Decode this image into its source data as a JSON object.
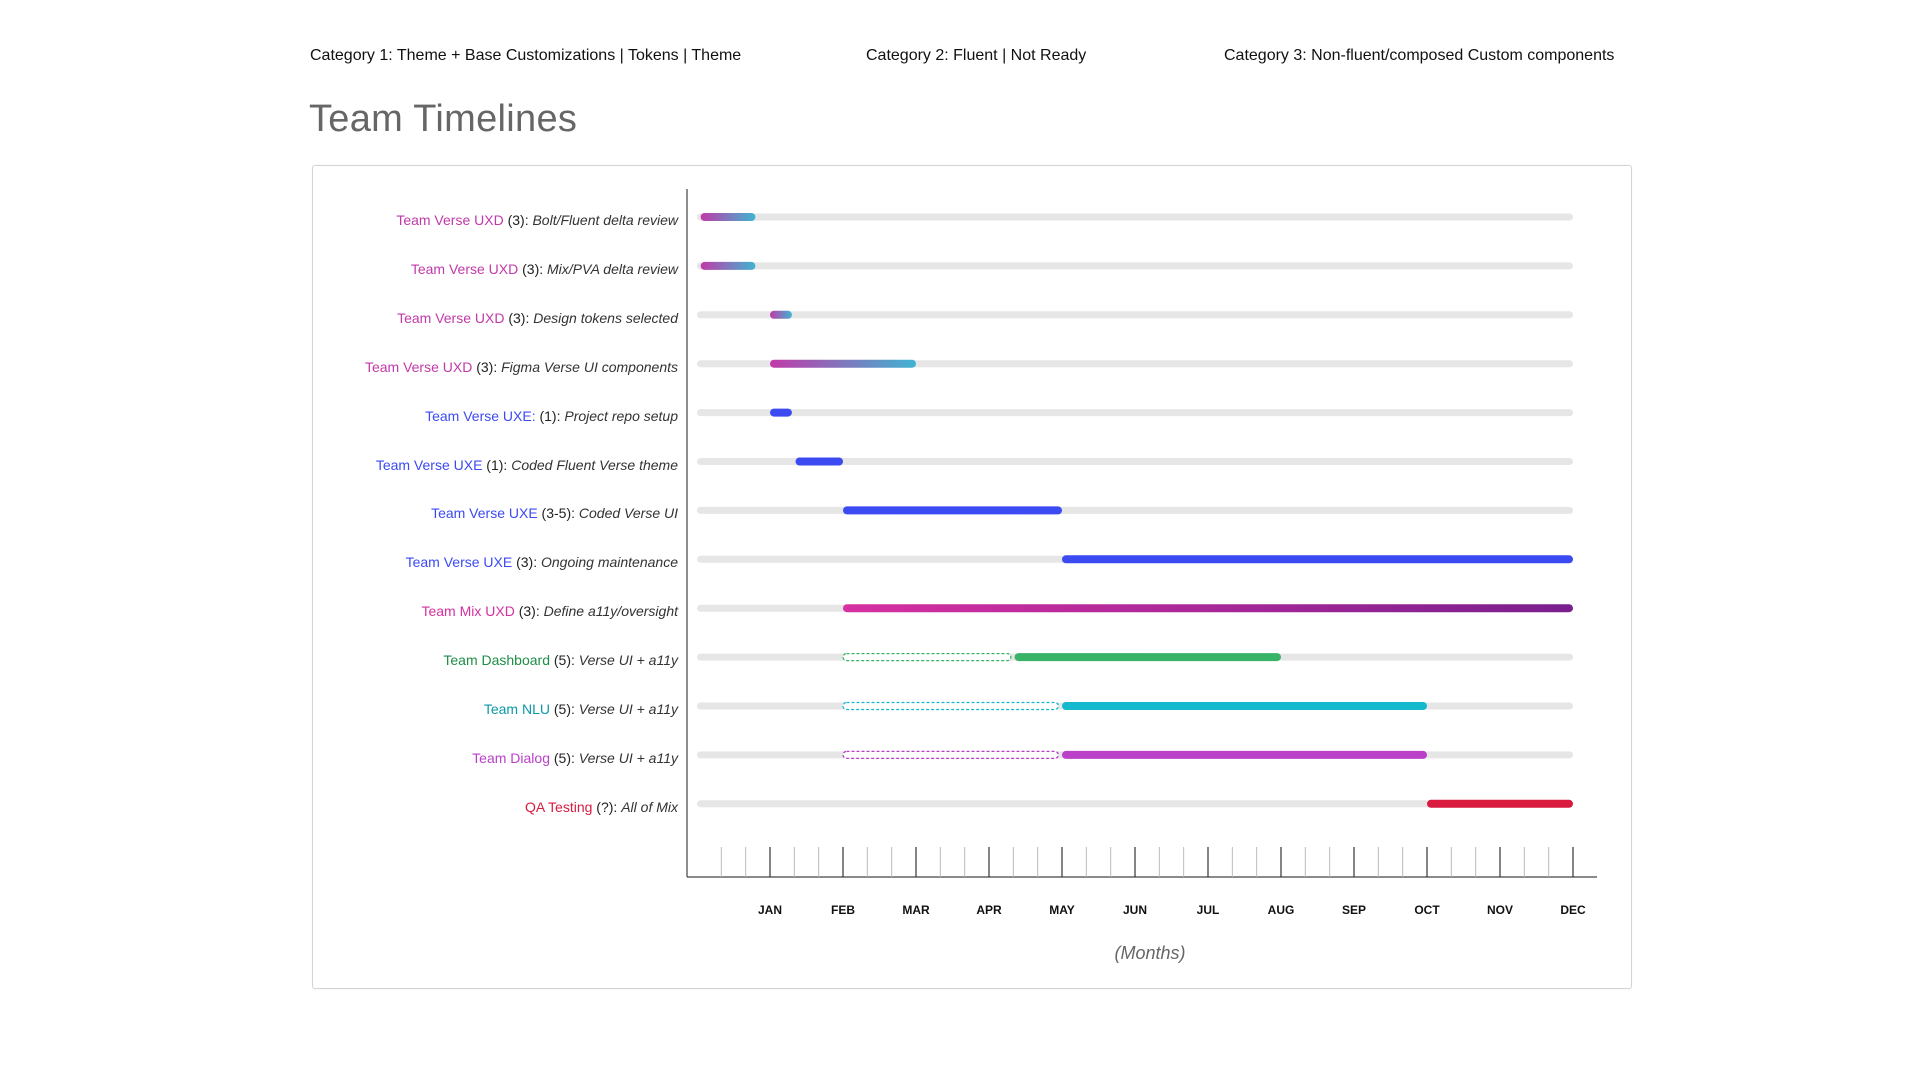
{
  "categories": [
    {
      "text": "Category 1: Theme + Base Customizations | Tokens | Theme"
    },
    {
      "text": "Category 2: Fluent | Not Ready"
    },
    {
      "text": "Category 3: Non-fluent/composed Custom components"
    }
  ],
  "page_title": "Team Timelines",
  "colors": {
    "uxd": "#c13aa8",
    "uxd_gradient_end": "#3fb4d2",
    "uxe": "#3c4af2",
    "mix_start": "#d630a1",
    "mix_end": "#7a1f8e",
    "dashboard": "#39b368",
    "dashboard_label": "#1e8e46",
    "nlu": "#15b9cd",
    "nlu_label": "#0b98a8",
    "dialog": "#ba40c9",
    "qa": "#d81b3f",
    "track": "#e6e6e6",
    "highlight_month": "#d81b3f"
  },
  "chart_data": {
    "type": "gantt",
    "xlabel": "(Months)",
    "x_ticks": [
      "JAN",
      "FEB",
      "MAR",
      "APR",
      "MAY",
      "JUN",
      "JUL",
      "AUG",
      "SEP",
      "OCT",
      "NOV",
      "DEC"
    ],
    "highlighted_ticks": [
      "AUG",
      "DEC"
    ],
    "xlim_months": [
      0,
      12
    ],
    "rows": [
      {
        "team": "Team Verse UXD",
        "count": " (3):",
        "task": "Bolt/Fluent delta review",
        "color_key": "uxd",
        "style": "gradient",
        "start": 0.05,
        "end": 0.8
      },
      {
        "team": "Team Verse UXD",
        "count": " (3):",
        "task": "Mix/PVA delta review",
        "color_key": "uxd",
        "style": "gradient",
        "start": 0.05,
        "end": 0.8
      },
      {
        "team": "Team Verse UXD",
        "count": " (3):",
        "task": "Design tokens selected",
        "color_key": "uxd",
        "style": "gradient",
        "start": 1.0,
        "end": 1.3
      },
      {
        "team": "Team Verse UXD",
        "count": " (3):",
        "task": "Figma Verse UI components",
        "color_key": "uxd",
        "style": "gradient",
        "start": 1.0,
        "end": 3.0
      },
      {
        "team": "Team Verse UXE:",
        "count": " (1):",
        "task": "Project repo setup",
        "color_key": "uxe",
        "style": "solid",
        "start": 1.0,
        "end": 1.3
      },
      {
        "team": "Team Verse UXE",
        "count": " (1):",
        "task": "Coded Fluent Verse theme",
        "color_key": "uxe",
        "style": "solid",
        "start": 1.35,
        "end": 2.0
      },
      {
        "team": "Team Verse UXE",
        "count": " (3-5):",
        "task": "Coded Verse UI",
        "color_key": "uxe",
        "style": "solid",
        "start": 2.0,
        "end": 5.0
      },
      {
        "team": "Team Verse UXE",
        "count": " (3):",
        "task": "Ongoing maintenance",
        "color_key": "uxe",
        "style": "solid",
        "start": 5.0,
        "end": 12.0
      },
      {
        "team": "Team Mix UXD",
        "count": " (3):",
        "task": "Define a11y/oversight",
        "color_key": "mix_start",
        "style": "mix",
        "start": 2.0,
        "end": 12.0
      },
      {
        "team": "Team Dashboard",
        "count": " (5):",
        "task": "Verse UI + a11y",
        "color_key": "dashboard",
        "label_color_key": "dashboard_label",
        "style": "planned",
        "planned_start": 2.0,
        "planned_end": 4.3,
        "start": 4.35,
        "end": 8.0
      },
      {
        "team": "Team NLU",
        "count": " (5):",
        "task": "Verse UI + a11y",
        "color_key": "nlu",
        "label_color_key": "nlu_label",
        "style": "planned",
        "planned_start": 2.0,
        "planned_end": 4.95,
        "start": 5.0,
        "end": 10.0
      },
      {
        "team": "Team Dialog",
        "count": " (5):",
        "task": "Verse UI + a11y",
        "color_key": "dialog",
        "style": "planned",
        "planned_start": 2.0,
        "planned_end": 4.95,
        "start": 5.0,
        "end": 10.0
      },
      {
        "team": "QA Testing",
        "count": " (?):",
        "task": "All of Mix",
        "color_key": "qa",
        "style": "solid",
        "start": 10.0,
        "end": 12.0
      }
    ]
  }
}
